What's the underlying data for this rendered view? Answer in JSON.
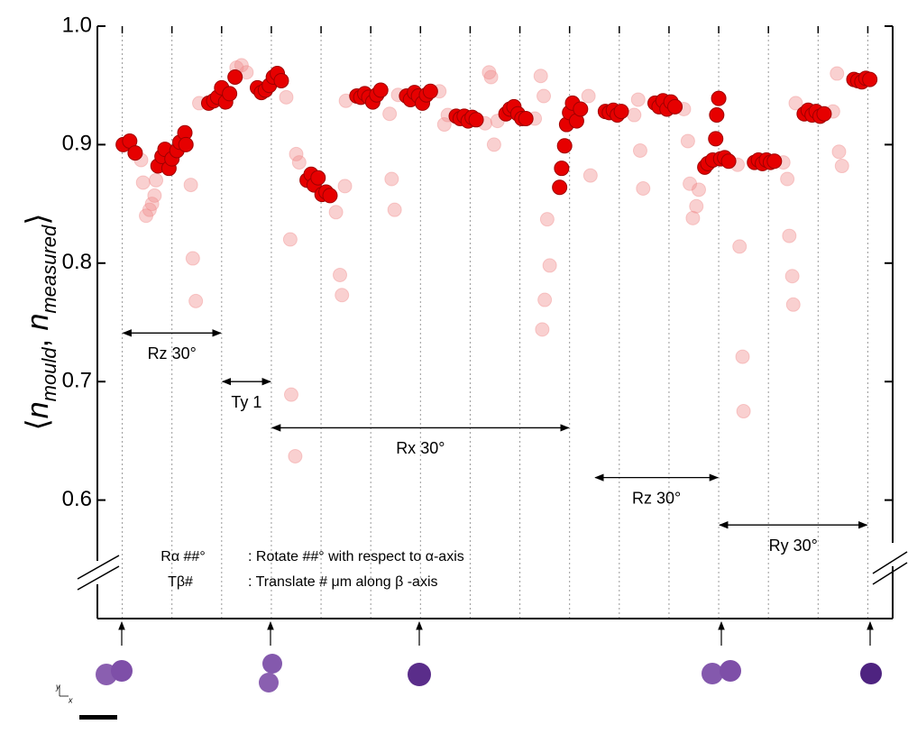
{
  "chart_data": {
    "type": "scatter",
    "ylabel": [
      "⟨",
      "n",
      "mould",
      ", ",
      "n",
      "measured",
      "⟩"
    ],
    "xlim": [
      -0.5,
      15.5
    ],
    "xticks": [
      0,
      1,
      2,
      3,
      4,
      5,
      6,
      7,
      8,
      9,
      10,
      11,
      12,
      13,
      14,
      15
    ],
    "ylim": [
      0.5,
      1.0
    ],
    "yticks": [
      0.6,
      0.7,
      0.8,
      {
        "value": 0.9,
        "label": "0.9"
      },
      {
        "value": 1.0,
        "label": "1.0"
      }
    ],
    "series": [
      {
        "color": "#f08a8a",
        "opacity": 0.4,
        "x": [
          0.38,
          0.42,
          0.48,
          0.55,
          0.6,
          0.65,
          0.68,
          1.3,
          1.38,
          1.42,
          1.48,
          1.55,
          2.3,
          2.4,
          2.5,
          3.3,
          3.38,
          3.4,
          3.48,
          3.5,
          3.56,
          4.3,
          4.38,
          4.42,
          4.48,
          4.5,
          5.38,
          5.42,
          5.48,
          5.55,
          6.38,
          6.48,
          6.55,
          7.3,
          7.38,
          7.42,
          7.48,
          7.55,
          8.3,
          8.42,
          8.48,
          8.55,
          8.6,
          8.5,
          8.45,
          9.38,
          9.42,
          10.3,
          10.38,
          10.42,
          10.48,
          11.3,
          11.38,
          11.42,
          11.48,
          11.55,
          11.6,
          12.38,
          12.42,
          12.48,
          12.5,
          13.3,
          13.38,
          13.42,
          13.48,
          13.5,
          13.55,
          14.3,
          14.38,
          14.42,
          14.48
        ],
        "values": [
          0.887,
          0.868,
          0.84,
          0.845,
          0.85,
          0.857,
          0.87,
          0.9,
          0.866,
          0.804,
          0.768,
          0.935,
          0.965,
          0.967,
          0.961,
          0.94,
          0.82,
          0.689,
          0.637,
          0.892,
          0.885,
          0.843,
          0.79,
          0.773,
          0.865,
          0.937,
          0.926,
          0.871,
          0.845,
          0.942,
          0.945,
          0.917,
          0.925,
          0.918,
          0.961,
          0.957,
          0.9,
          0.92,
          0.922,
          0.958,
          0.941,
          0.837,
          0.798,
          0.769,
          0.744,
          0.941,
          0.874,
          0.925,
          0.938,
          0.895,
          0.863,
          0.93,
          0.903,
          0.867,
          0.838,
          0.848,
          0.862,
          0.883,
          0.814,
          0.721,
          0.675,
          0.885,
          0.871,
          0.823,
          0.789,
          0.765,
          0.935,
          0.928,
          0.96,
          0.894,
          0.882
        ]
      },
      {
        "color": "#e60000",
        "opacity": 1,
        "x": [
          0.02,
          0.15,
          0.26,
          0.72,
          0.8,
          0.86,
          0.94,
          1.0,
          1.1,
          1.16,
          1.26,
          1.28,
          1.74,
          1.84,
          1.92,
          2.0,
          2.08,
          2.16,
          2.27,
          2.72,
          2.8,
          2.88,
          2.96,
          3.04,
          3.12,
          3.2,
          3.72,
          3.8,
          3.86,
          3.94,
          4.02,
          4.1,
          4.18,
          4.72,
          4.8,
          4.88,
          4.96,
          5.04,
          5.12,
          5.2,
          5.72,
          5.8,
          5.88,
          5.96,
          6.04,
          6.12,
          6.2,
          6.72,
          6.8,
          6.88,
          6.96,
          7.04,
          7.12,
          7.72,
          7.8,
          7.88,
          7.96,
          8.04,
          8.12,
          8.8,
          8.84,
          8.9,
          8.94,
          9.0,
          9.06,
          9.14,
          9.22,
          9.72,
          9.8,
          9.88,
          9.96,
          10.04,
          10.72,
          10.8,
          10.88,
          10.96,
          11.04,
          11.12,
          11.72,
          11.78,
          11.88,
          11.94,
          11.96,
          12.0,
          12.04,
          12.12,
          12.2,
          12.72,
          12.8,
          12.88,
          12.96,
          13.04,
          13.12,
          13.72,
          13.8,
          13.88,
          13.96,
          14.04,
          14.12,
          14.72,
          14.8,
          14.88,
          14.96,
          15.04
        ],
        "values": [
          0.9,
          0.903,
          0.893,
          0.882,
          0.89,
          0.896,
          0.88,
          0.888,
          0.895,
          0.902,
          0.91,
          0.9,
          0.935,
          0.937,
          0.94,
          0.948,
          0.936,
          0.943,
          0.957,
          0.948,
          0.944,
          0.946,
          0.95,
          0.957,
          0.96,
          0.954,
          0.87,
          0.875,
          0.866,
          0.872,
          0.858,
          0.86,
          0.857,
          0.941,
          0.94,
          0.943,
          0.94,
          0.936,
          0.942,
          0.946,
          0.941,
          0.938,
          0.944,
          0.941,
          0.935,
          0.942,
          0.945,
          0.924,
          0.922,
          0.924,
          0.92,
          0.923,
          0.921,
          0.926,
          0.93,
          0.932,
          0.926,
          0.922,
          0.922,
          0.864,
          0.88,
          0.899,
          0.917,
          0.927,
          0.935,
          0.92,
          0.93,
          0.928,
          0.927,
          0.929,
          0.925,
          0.928,
          0.935,
          0.932,
          0.937,
          0.93,
          0.936,
          0.932,
          0.881,
          0.884,
          0.887,
          0.905,
          0.925,
          0.939,
          0.888,
          0.889,
          0.886,
          0.885,
          0.887,
          0.884,
          0.887,
          0.885,
          0.886,
          0.926,
          0.929,
          0.925,
          0.928,
          0.924,
          0.926,
          0.955,
          0.954,
          0.953,
          0.956,
          0.955
        ]
      }
    ],
    "annotations": [
      {
        "text": "Rz 30°",
        "x": [
          0,
          2
        ],
        "y": 0.741
      },
      {
        "text": "Ty 1",
        "x": [
          2,
          3
        ],
        "y": 0.7
      },
      {
        "text": "Rx 30°",
        "x": [
          3,
          9
        ],
        "y": 0.661
      },
      {
        "text": "Rz 30°",
        "x": [
          9.5,
          12
        ],
        "y": 0.619
      },
      {
        "text": "Ry 30°",
        "x": [
          12,
          15
        ],
        "y": 0.579
      }
    ],
    "legend_notes": [
      {
        "symbol": "Rα ##°",
        "text": ": Rotate ##° with respect to α-axis"
      },
      {
        "symbol": "Tβ#",
        "text": ": Translate # μm along β -axis"
      }
    ],
    "axes_icon": [
      "y",
      "x"
    ]
  }
}
